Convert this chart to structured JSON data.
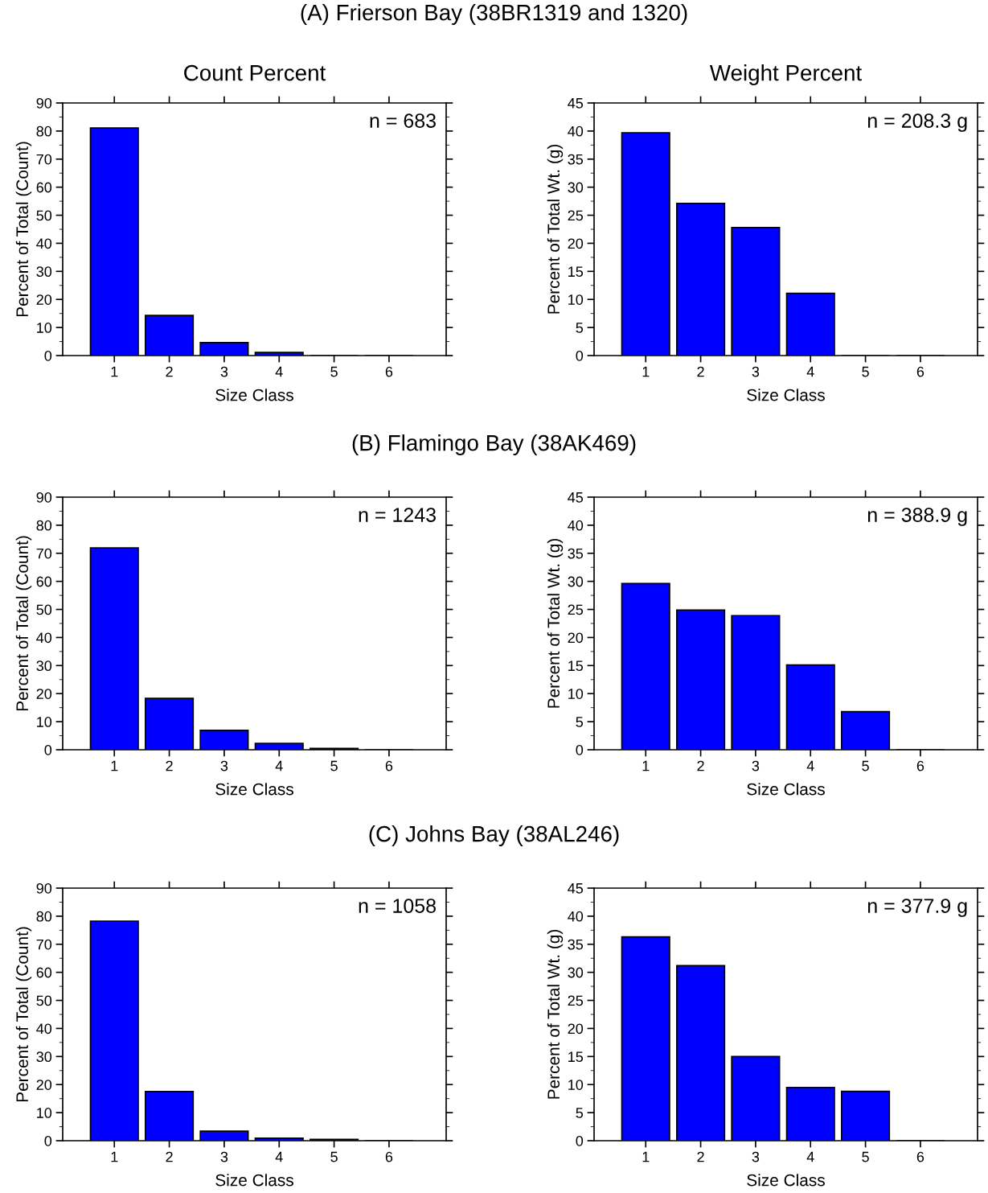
{
  "chart_data": [
    {
      "type": "bar",
      "title": "(A) Frierson Bay (38BR1319 and 1320)",
      "subtitle": "Count Percent",
      "xlabel": "Size Class",
      "ylabel": "Percent of Total (Count)",
      "categories": [
        "1",
        "2",
        "3",
        "4",
        "5",
        "6"
      ],
      "values": [
        81.1,
        14.3,
        4.6,
        1.1,
        0,
        0
      ],
      "color": "#0000ff",
      "ylim": [
        0,
        90
      ],
      "yticks": [
        0,
        10,
        20,
        30,
        40,
        50,
        60,
        70,
        80,
        90
      ],
      "annotations": [
        "n = 683"
      ],
      "grid": false
    },
    {
      "type": "bar",
      "subtitle": "Weight Percent",
      "xlabel": "Size Class",
      "ylabel": "Percent of Total Wt. (g)",
      "categories": [
        "1",
        "2",
        "3",
        "4",
        "5",
        "6"
      ],
      "values": [
        39.7,
        27.1,
        22.8,
        11.1,
        0,
        0
      ],
      "color": "#0000ff",
      "ylim": [
        0,
        45
      ],
      "yticks": [
        0,
        5,
        10,
        15,
        20,
        25,
        30,
        35,
        40,
        45
      ],
      "annotations": [
        "n = 208.3 g"
      ],
      "grid": false
    },
    {
      "type": "bar",
      "title": "(B) Flamingo Bay (38AK469)",
      "xlabel": "Size Class",
      "ylabel": "Percent of Total (Count)",
      "categories": [
        "1",
        "2",
        "3",
        "4",
        "5",
        "6"
      ],
      "values": [
        71.9,
        18.3,
        6.9,
        2.3,
        0.5,
        0
      ],
      "color": "#0000ff",
      "ylim": [
        0,
        90
      ],
      "yticks": [
        0,
        10,
        20,
        30,
        40,
        50,
        60,
        70,
        80,
        90
      ],
      "annotations": [
        "n = 1243"
      ],
      "grid": false
    },
    {
      "type": "bar",
      "xlabel": "Size Class",
      "ylabel": "Percent of Total Wt. (g)",
      "categories": [
        "1",
        "2",
        "3",
        "4",
        "5",
        "6"
      ],
      "values": [
        29.6,
        24.9,
        23.9,
        15.1,
        6.8,
        0
      ],
      "color": "#0000ff",
      "ylim": [
        0,
        45
      ],
      "yticks": [
        0,
        5,
        10,
        15,
        20,
        25,
        30,
        35,
        40,
        45
      ],
      "annotations": [
        "n = 388.9 g"
      ],
      "grid": false
    },
    {
      "type": "bar",
      "title": "(C) Johns Bay (38AL246)",
      "xlabel": "Size Class",
      "ylabel": "Percent of Total (Count)",
      "categories": [
        "1",
        "2",
        "3",
        "4",
        "5",
        "6"
      ],
      "values": [
        78.2,
        17.5,
        3.4,
        0.9,
        0.5,
        0
      ],
      "color": "#0000ff",
      "ylim": [
        0,
        90
      ],
      "yticks": [
        0,
        10,
        20,
        30,
        40,
        50,
        60,
        70,
        80,
        90
      ],
      "annotations": [
        "n = 1058"
      ],
      "grid": false
    },
    {
      "type": "bar",
      "xlabel": "Size Class",
      "ylabel": "Percent of Total Wt. (g)",
      "categories": [
        "1",
        "2",
        "3",
        "4",
        "5",
        "6"
      ],
      "values": [
        36.3,
        31.2,
        15.0,
        9.5,
        8.8,
        0
      ],
      "color": "#0000ff",
      "ylim": [
        0,
        45
      ],
      "yticks": [
        0,
        5,
        10,
        15,
        20,
        25,
        30,
        35,
        40,
        45
      ],
      "annotations": [
        "n = 377.9 g"
      ],
      "grid": false
    }
  ]
}
